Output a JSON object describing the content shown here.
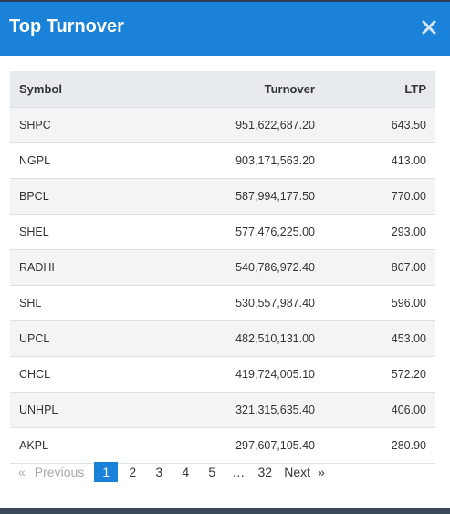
{
  "modal": {
    "title": "Top Turnover",
    "close_icon": "close-icon"
  },
  "table": {
    "headers": {
      "symbol": "Symbol",
      "turnover": "Turnover",
      "ltp": "LTP"
    },
    "rows": [
      {
        "symbol": "SHPC",
        "turnover": "951,622,687.20",
        "ltp": "643.50"
      },
      {
        "symbol": "NGPL",
        "turnover": "903,171,563.20",
        "ltp": "413.00"
      },
      {
        "symbol": "BPCL",
        "turnover": "587,994,177.50",
        "ltp": "770.00"
      },
      {
        "symbol": "SHEL",
        "turnover": "577,476,225.00",
        "ltp": "293.00"
      },
      {
        "symbol": "RADHI",
        "turnover": "540,786,972.40",
        "ltp": "807.00"
      },
      {
        "symbol": "SHL",
        "turnover": "530,557,987.40",
        "ltp": "596.00"
      },
      {
        "symbol": "UPCL",
        "turnover": "482,510,131.00",
        "ltp": "453.00"
      },
      {
        "symbol": "CHCL",
        "turnover": "419,724,005.10",
        "ltp": "572.20"
      },
      {
        "symbol": "UNHPL",
        "turnover": "321,315,635.40",
        "ltp": "406.00"
      },
      {
        "symbol": "AKPL",
        "turnover": "297,607,105.40",
        "ltp": "280.90"
      }
    ]
  },
  "pagination": {
    "prev_arrow": "«",
    "prev_label": "Previous",
    "pages": [
      "1",
      "2",
      "3",
      "4",
      "5"
    ],
    "active_page": "1",
    "ellipsis": "…",
    "last_page": "32",
    "next_label": "Next",
    "next_arrow": "»"
  },
  "colors": {
    "header_bg": "#1a82d9",
    "active_page_bg": "#1a82d9",
    "table_header_bg": "#e8ebee"
  }
}
